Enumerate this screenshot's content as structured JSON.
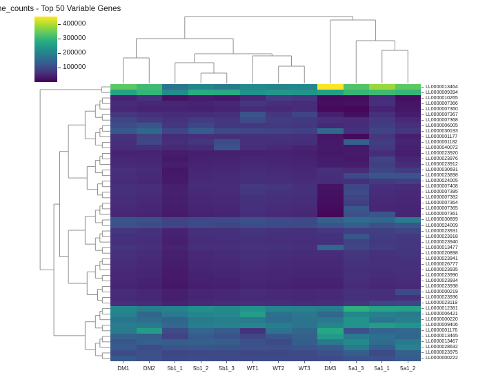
{
  "title": "ne_counts - Top 50 Variable Genes",
  "colorbar": {
    "ticks": [
      400000,
      300000,
      200000,
      100000
    ],
    "vmin": 0,
    "vmax": 455000,
    "colormap": "viridis"
  },
  "chart_data": {
    "type": "heatmap",
    "title": "ne_counts - Top 50 Variable Genes",
    "colormap": "viridis",
    "vmin": 0,
    "vmax": 455000,
    "colorbar_ticks": [
      400000,
      300000,
      200000,
      100000
    ],
    "legend_position": "top-left",
    "columns": [
      "DM1",
      "DM2",
      "5b1_1",
      "5b1_2",
      "5b1_3",
      "WT1",
      "WT2",
      "WT3",
      "DM3",
      "5a1_3",
      "5a1_1",
      "5a1_2"
    ],
    "rows": [
      "LL0000013464",
      "LL0000009394",
      "LL0000010265",
      "LL0000007366",
      "LL0000007360",
      "LL0000007367",
      "LL0000007368",
      "LL0000006005",
      "LL0000030193",
      "LL0000001177",
      "LL0000001182",
      "LL0000040072",
      "LL0000023920",
      "LL0000023976",
      "LL0000023912",
      "LL0000030691",
      "LL0000023898",
      "LL0000024005",
      "LL0000007408",
      "LL0000007395",
      "LL0000007382",
      "LL0000007364",
      "LL0000007365",
      "LL0000007361",
      "LL0000030899",
      "LL0000024009",
      "LL0000023931",
      "LL0000023918",
      "LL0000023940",
      "LL0000013477",
      "LL0000020898",
      "LL0000023941",
      "LL0000026777",
      "LL0000023935",
      "LL0000023990",
      "LL0000023934",
      "LL0000023938",
      "LL0000000219",
      "LL0000023936",
      "LL0000023119",
      "LL0000012381",
      "LL0000006421",
      "LL0000000220",
      "LL0000009406",
      "LL0000001176",
      "LL0000013465",
      "LL0000013467",
      "LL0000028632",
      "LL0000023975",
      "LL0000000222"
    ],
    "values": [
      [
        340000,
        310000,
        175000,
        205000,
        185000,
        215000,
        205000,
        210000,
        452000,
        330000,
        385000,
        340000
      ],
      [
        265000,
        300000,
        220000,
        285000,
        280000,
        230000,
        240000,
        235000,
        255000,
        300000,
        310000,
        300000
      ],
      [
        45000,
        65000,
        25000,
        35000,
        30000,
        50000,
        80000,
        70000,
        15000,
        15000,
        55000,
        18000
      ],
      [
        55000,
        50000,
        48000,
        45000,
        50000,
        70000,
        60000,
        55000,
        18000,
        22000,
        60000,
        25000
      ],
      [
        50000,
        45000,
        45000,
        42000,
        45000,
        55000,
        52000,
        55000,
        12000,
        8000,
        45000,
        28000
      ],
      [
        70000,
        62000,
        55000,
        56000,
        60000,
        115000,
        72000,
        92000,
        40000,
        18000,
        60000,
        35000
      ],
      [
        95000,
        78000,
        65000,
        80000,
        70000,
        105000,
        82000,
        75000,
        60000,
        55000,
        75000,
        52000
      ],
      [
        105000,
        120000,
        70000,
        95000,
        75000,
        72000,
        76000,
        72000,
        52000,
        55000,
        82000,
        62000
      ],
      [
        125000,
        150000,
        95000,
        130000,
        100000,
        95000,
        90000,
        88000,
        155000,
        60000,
        90000,
        70000
      ],
      [
        65000,
        90000,
        55000,
        60000,
        58000,
        62000,
        65000,
        60000,
        28000,
        12000,
        70000,
        40000
      ],
      [
        60000,
        95000,
        58000,
        70000,
        105000,
        60000,
        62000,
        58000,
        30000,
        140000,
        80000,
        45000
      ],
      [
        55000,
        60000,
        52000,
        55000,
        115000,
        58000,
        52000,
        45000,
        32000,
        30000,
        75000,
        42000
      ],
      [
        45000,
        45000,
        35000,
        40000,
        40000,
        42000,
        44000,
        40000,
        30000,
        32000,
        55000,
        38000
      ],
      [
        50000,
        48000,
        30000,
        42000,
        44000,
        48000,
        46000,
        44000,
        35000,
        30000,
        90000,
        48000
      ],
      [
        52000,
        50000,
        38000,
        45000,
        46000,
        50000,
        48000,
        46000,
        38000,
        35000,
        85000,
        55000
      ],
      [
        60000,
        55000,
        28000,
        48000,
        50000,
        55000,
        52000,
        50000,
        62000,
        55000,
        95000,
        80000
      ],
      [
        58000,
        52000,
        30000,
        50000,
        52000,
        58000,
        55000,
        52000,
        58000,
        100000,
        120000,
        115000
      ],
      [
        55000,
        50000,
        32000,
        52000,
        54000,
        60000,
        58000,
        55000,
        55000,
        60000,
        75000,
        85000
      ],
      [
        62000,
        58000,
        40000,
        55000,
        56000,
        75000,
        70000,
        62000,
        25000,
        95000,
        60000,
        55000
      ],
      [
        60000,
        55000,
        42000,
        52000,
        54000,
        70000,
        65000,
        60000,
        22000,
        105000,
        55000,
        52000
      ],
      [
        58000,
        52000,
        40000,
        50000,
        52000,
        65000,
        60000,
        58000,
        20000,
        90000,
        52000,
        50000
      ],
      [
        55000,
        50000,
        38000,
        48000,
        50000,
        62000,
        58000,
        55000,
        15000,
        85000,
        50000,
        48000
      ],
      [
        52000,
        48000,
        36000,
        46000,
        48000,
        60000,
        55000,
        52000,
        12000,
        125000,
        48000,
        46000
      ],
      [
        50000,
        46000,
        34000,
        44000,
        46000,
        58000,
        52000,
        50000,
        8000,
        110000,
        120000,
        46000
      ],
      [
        120000,
        110000,
        90000,
        100000,
        100000,
        110000,
        105000,
        100000,
        140000,
        160000,
        150000,
        190000
      ],
      [
        110000,
        105000,
        92000,
        100000,
        95000,
        105000,
        100000,
        100000,
        115000,
        135000,
        110000,
        120000
      ],
      [
        70000,
        65000,
        45000,
        60000,
        62000,
        68000,
        65000,
        62000,
        70000,
        80000,
        85000,
        90000
      ],
      [
        65000,
        60000,
        42000,
        58000,
        60000,
        65000,
        62000,
        60000,
        65000,
        120000,
        80000,
        75000
      ],
      [
        62000,
        58000,
        40000,
        56000,
        58000,
        62000,
        60000,
        58000,
        60000,
        90000,
        75000,
        70000
      ],
      [
        68000,
        62000,
        45000,
        60000,
        62000,
        66000,
        64000,
        60000,
        150000,
        95000,
        80000,
        72000
      ],
      [
        60000,
        55000,
        40000,
        52000,
        55000,
        60000,
        58000,
        55000,
        55000,
        70000,
        65000,
        68000
      ],
      [
        58000,
        52000,
        38000,
        50000,
        52000,
        58000,
        55000,
        52000,
        52000,
        68000,
        62000,
        65000
      ],
      [
        55000,
        50000,
        36000,
        48000,
        50000,
        55000,
        52000,
        50000,
        50000,
        65000,
        60000,
        62000
      ],
      [
        52000,
        48000,
        34000,
        46000,
        48000,
        52000,
        50000,
        48000,
        48000,
        62000,
        58000,
        60000
      ],
      [
        50000,
        46000,
        32000,
        44000,
        46000,
        50000,
        48000,
        46000,
        46000,
        60000,
        55000,
        58000
      ],
      [
        48000,
        44000,
        30000,
        42000,
        44000,
        48000,
        46000,
        44000,
        44000,
        58000,
        52000,
        55000
      ],
      [
        46000,
        42000,
        28000,
        40000,
        42000,
        46000,
        44000,
        42000,
        42000,
        55000,
        50000,
        52000
      ],
      [
        55000,
        50000,
        40000,
        48000,
        50000,
        55000,
        52000,
        50000,
        52000,
        65000,
        60000,
        100000
      ],
      [
        52000,
        48000,
        38000,
        46000,
        48000,
        52000,
        50000,
        48000,
        50000,
        62000,
        58000,
        62000
      ],
      [
        60000,
        55000,
        45000,
        52000,
        55000,
        60000,
        58000,
        55000,
        58000,
        70000,
        90000,
        95000
      ],
      [
        210000,
        195000,
        200000,
        225000,
        215000,
        230000,
        205000,
        200000,
        195000,
        290000,
        265000,
        260000
      ],
      [
        200000,
        150000,
        185000,
        205000,
        210000,
        250000,
        165000,
        180000,
        150000,
        210000,
        195000,
        185000
      ],
      [
        175000,
        160000,
        148000,
        185000,
        195000,
        188000,
        162000,
        172000,
        182000,
        235000,
        178000,
        195000
      ],
      [
        190000,
        185000,
        155000,
        195000,
        200000,
        205000,
        190000,
        175000,
        205000,
        230000,
        250000,
        235000
      ],
      [
        185000,
        250000,
        105000,
        150000,
        130000,
        65000,
        175000,
        150000,
        275000,
        110000,
        145000,
        155000
      ],
      [
        140000,
        135000,
        90000,
        130000,
        115000,
        95000,
        120000,
        140000,
        245000,
        185000,
        165000,
        150000
      ],
      [
        120000,
        140000,
        135000,
        140000,
        135000,
        110000,
        100000,
        135000,
        185000,
        215000,
        160000,
        185000
      ],
      [
        130000,
        105000,
        115000,
        120000,
        115000,
        115000,
        110000,
        120000,
        130000,
        185000,
        135000,
        200000
      ],
      [
        105000,
        110000,
        95000,
        100000,
        100000,
        95000,
        98000,
        100000,
        110000,
        135000,
        100000,
        140000
      ],
      [
        125000,
        110000,
        100000,
        105000,
        102000,
        100000,
        102000,
        100000,
        105000,
        115000,
        110000,
        130000
      ]
    ],
    "column_dendrogram": {
      "h": 0.97,
      "c": [
        {
          "h": 0.65,
          "c": [
            {
              "h": 0.37,
              "c": [
                0,
                1
              ]
            },
            {
              "h": 0.43,
              "c": [
                {
                  "h": 0.3,
                  "c": [
                    2,
                    {
                      "h": 0.15,
                      "c": [
                        3,
                        4
                      ]
                    }
                  ]
                },
                {
                  "h": 0.4,
                  "c": [
                    5,
                    {
                      "h": 0.25,
                      "c": [
                        6,
                        7
                      ]
                    }
                  ]
                }
              ]
            }
          ]
        },
        {
          "h": 0.92,
          "c": [
            8,
            {
              "h": 0.62,
              "c": [
                9,
                {
                  "h": 0.48,
                  "c": [
                    10,
                    11
                  ]
                }
              ]
            }
          ]
        }
      ]
    }
  }
}
